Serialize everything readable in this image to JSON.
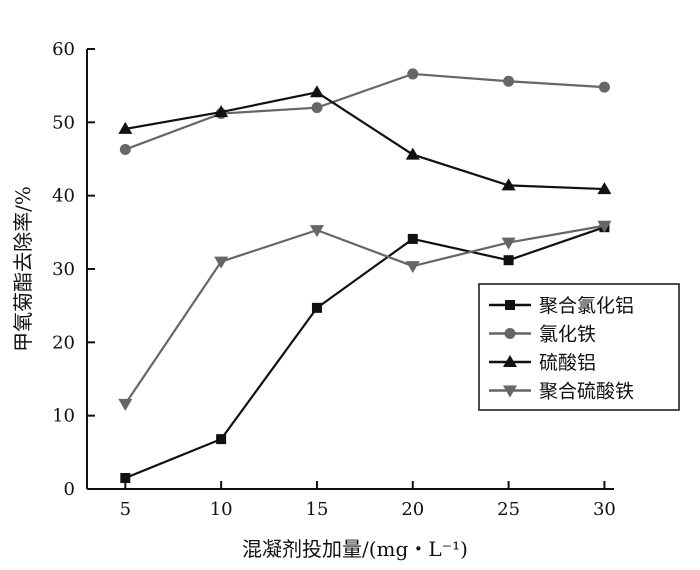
{
  "chart_data": {
    "type": "line",
    "xlabel": "混凝剂投加量/(mg・L⁻¹)",
    "ylabel": "甲氧菊酯去除率/%",
    "x": [
      5,
      10,
      15,
      20,
      25,
      30
    ],
    "xlim": [
      3,
      30.5
    ],
    "ylim": [
      0,
      60
    ],
    "xticks": [
      "5",
      "10",
      "15",
      "20",
      "25",
      "30"
    ],
    "yticks": [
      "0",
      "10",
      "20",
      "30",
      "40",
      "50",
      "60"
    ],
    "grid": false,
    "legend_position": "center-right",
    "series": [
      {
        "name": "聚合氯化铝",
        "values": [
          1.5,
          6.8,
          24.7,
          34.1,
          31.2,
          35.7
        ],
        "color": "#111111",
        "marker": "square"
      },
      {
        "name": "氯化铁",
        "values": [
          46.3,
          51.2,
          52.0,
          56.6,
          55.6,
          54.8
        ],
        "color": "#666666",
        "marker": "circle"
      },
      {
        "name": "硫酸铝",
        "values": [
          49.1,
          51.4,
          54.1,
          45.6,
          41.4,
          40.9
        ],
        "color": "#111111",
        "marker": "triangle-up"
      },
      {
        "name": "聚合硫酸铁",
        "values": [
          11.6,
          31.0,
          35.3,
          30.4,
          33.6,
          35.9
        ],
        "color": "#666666",
        "marker": "triangle-down"
      }
    ]
  }
}
